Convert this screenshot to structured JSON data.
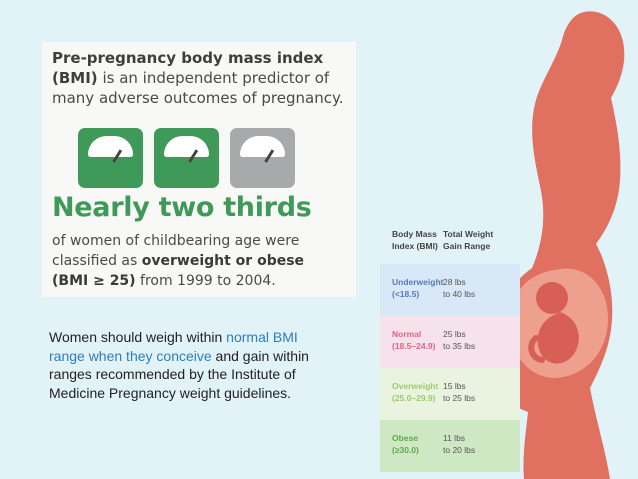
{
  "infographic": {
    "intro_bold": "Pre-pregnancy body mass index (BMI)",
    "intro_rest": "is an independent predictor of many adverse outcomes of pregnancy.",
    "scale_icon_count": 3,
    "headline": "Nearly two thirds",
    "body_1": "of women of childbearing age were classified as",
    "body_bold_1": "overweight or obese",
    "body_bold_2": "(BMI ≥ 25)",
    "body_2": "from 1999 to 2004.",
    "colors": {
      "green": "#3f9a5a",
      "gray": "#a7a9aa"
    }
  },
  "caption": {
    "part1": "Women should weigh within ",
    "highlight": "normal BMI range when they conceive",
    "part2": " and gain within ranges recommended by the Institute of Medicine Pregnancy weight guidelines."
  },
  "bmi_table": {
    "headers": {
      "col1_line1": "Body Mass",
      "col1_line2": "Index (BMI)",
      "col2_line1": "Total Weight",
      "col2_line2": "Gain Range"
    },
    "rows": [
      {
        "category": "Underweight",
        "range": "(<18.5)",
        "gain_line1": "28 lbs",
        "gain_line2": "to 40 lbs",
        "color": "#5b79b6"
      },
      {
        "category": "Normal",
        "range": "(18.5–24.9)",
        "gain_line1": "25 lbs",
        "gain_line2": "to 35 lbs",
        "color": "#e1638a"
      },
      {
        "category": "Overweight",
        "range": "(25.0–29.9)",
        "gain_line1": "15 lbs",
        "gain_line2": "to 25 lbs",
        "color": "#9ccc6d"
      },
      {
        "category": "Obese",
        "range": "(≥30.0)",
        "gain_line1": "11 lbs",
        "gain_line2": "to 20 lbs",
        "color": "#5fa84f"
      }
    ]
  },
  "illustration": {
    "subject": "pregnant-woman-silhouette-with-fetus",
    "color": "#e0705f"
  }
}
